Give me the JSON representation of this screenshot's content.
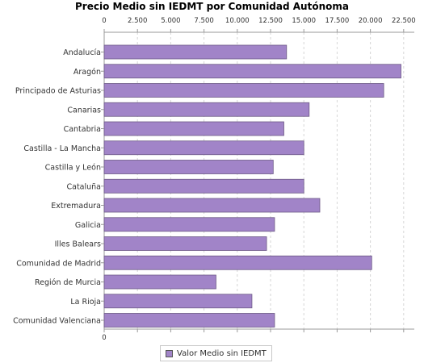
{
  "chart_data": {
    "type": "bar",
    "orientation": "horizontal",
    "title": "Precio Medio sin IEDMT por Comunidad Autónoma",
    "categories": [
      "Andalucía",
      "Aragón",
      "Principado de Asturias",
      "Canarias",
      "Cantabria",
      "Castilla - La Mancha",
      "Castilla y León",
      "Cataluña",
      "Extremadura",
      "Galicia",
      "Illes Balears",
      "Comunidad de Madrid",
      "Región de Murcia",
      "La Rioja",
      "Comunidad Valenciana"
    ],
    "series": [
      {
        "name": "Valor Medio sin IEDMT",
        "color": "#a184c8",
        "values": [
          13700,
          22300,
          21000,
          15400,
          13500,
          15000,
          12700,
          15000,
          16200,
          12800,
          12200,
          20100,
          8400,
          11100,
          12800
        ]
      }
    ],
    "x_ticks": [
      "0",
      "2.500",
      "5.000",
      "7.500",
      "10.000",
      "12.500",
      "15.000",
      "17.500",
      "20.000",
      "22.500"
    ],
    "x_tick_values": [
      0,
      2500,
      5000,
      7500,
      10000,
      12500,
      15000,
      17500,
      20000,
      22500
    ],
    "xlim": [
      0,
      23300
    ],
    "axis_position": "top",
    "grid": true,
    "legend_position": "bottom"
  }
}
